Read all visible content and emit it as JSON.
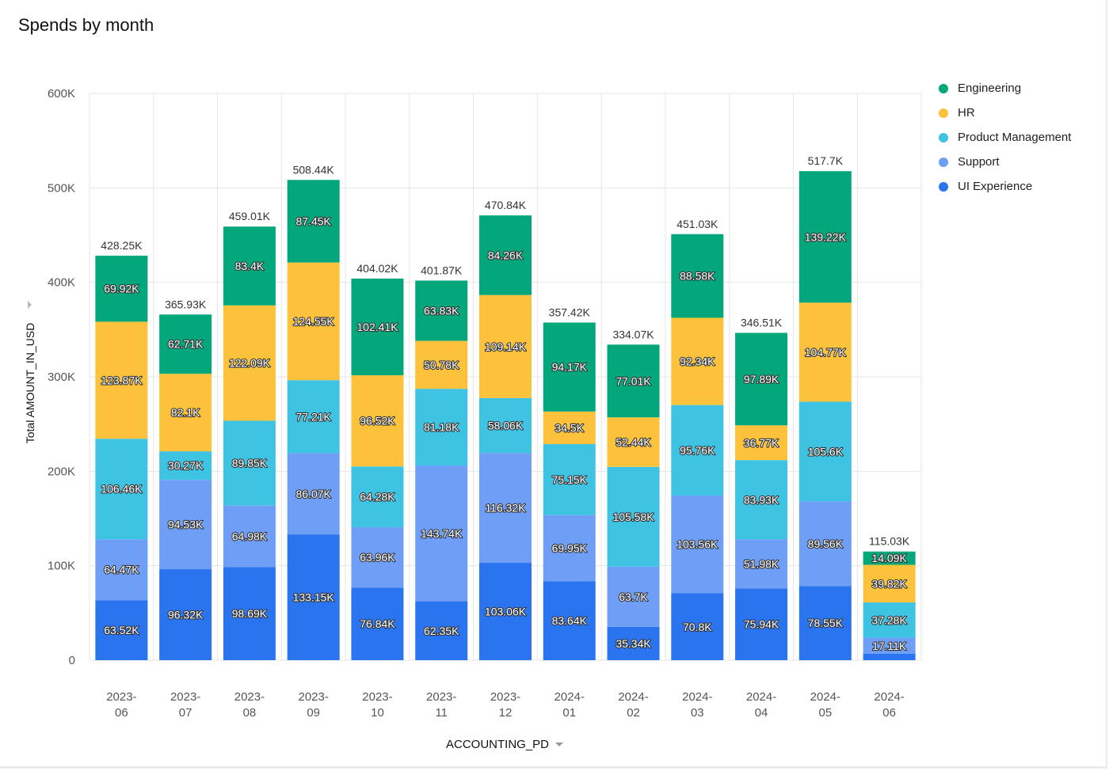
{
  "title": "Spends by month",
  "chart_data": {
    "type": "bar",
    "stacked": true,
    "title": "Spends by month",
    "xlabel": "ACCOUNTING_PD",
    "ylabel": "Total AMOUNT_IN_USD",
    "ylim": [
      0,
      600000
    ],
    "yticks": [
      {
        "value": 0,
        "label": "0"
      },
      {
        "value": 100000,
        "label": "100K"
      },
      {
        "value": 200000,
        "label": "200K"
      },
      {
        "value": 300000,
        "label": "300K"
      },
      {
        "value": 400000,
        "label": "400K"
      },
      {
        "value": 500000,
        "label": "500K"
      },
      {
        "value": 600000,
        "label": "600K"
      }
    ],
    "categories": [
      [
        "2023-",
        "06"
      ],
      [
        "2023-",
        "07"
      ],
      [
        "2023-",
        "08"
      ],
      [
        "2023-",
        "09"
      ],
      [
        "2023-",
        "10"
      ],
      [
        "2023-",
        "11"
      ],
      [
        "2023-",
        "12"
      ],
      [
        "2024-",
        "01"
      ],
      [
        "2024-",
        "02"
      ],
      [
        "2024-",
        "03"
      ],
      [
        "2024-",
        "04"
      ],
      [
        "2024-",
        "05"
      ],
      [
        "2024-",
        "06"
      ]
    ],
    "totals": [
      "428.25K",
      "365.93K",
      "459.01K",
      "508.44K",
      "404.02K",
      "401.87K",
      "470.84K",
      "357.42K",
      "334.07K",
      "451.03K",
      "346.51K",
      "517.7K",
      "115.03K"
    ],
    "series": [
      {
        "name": "UI Experience",
        "color": "#2a74f0",
        "values": [
          63520,
          96320,
          98690,
          133150,
          76840,
          62350,
          103060,
          83640,
          35340,
          70800,
          75940,
          78550,
          6730
        ],
        "labels": [
          "63.52K",
          "96.32K",
          "98.69K",
          "133.15K",
          "76.84K",
          "62.35K",
          "103.06K",
          "83.64K",
          "35.34K",
          "70.8K",
          "75.94K",
          "78.55K",
          ""
        ]
      },
      {
        "name": "Support",
        "color": "#6e9ef5",
        "values": [
          64470,
          94530,
          64980,
          86070,
          63960,
          143740,
          116320,
          69950,
          63700,
          103560,
          51980,
          89560,
          17110
        ],
        "labels": [
          "64.47K",
          "94.53K",
          "64.98K",
          "86.07K",
          "63.96K",
          "143.74K",
          "116.32K",
          "69.95K",
          "63.7K",
          "103.56K",
          "51.98K",
          "89.56K",
          "17.11K"
        ]
      },
      {
        "name": "Product Management",
        "color": "#3ec3e3",
        "values": [
          106460,
          30270,
          89850,
          77210,
          64280,
          81180,
          58060,
          75150,
          105580,
          95760,
          83930,
          105600,
          37280
        ],
        "labels": [
          "106.46K",
          "30.27K",
          "89.85K",
          "77.21K",
          "64.28K",
          "81.18K",
          "58.06K",
          "75.15K",
          "105.58K",
          "95.76K",
          "83.93K",
          "105.6K",
          "37.28K"
        ]
      },
      {
        "name": "HR",
        "color": "#fcc23b",
        "values": [
          123870,
          82100,
          122090,
          124550,
          96520,
          50780,
          109140,
          34500,
          52440,
          92340,
          36770,
          104770,
          39820
        ],
        "labels": [
          "123.87K",
          "82.1K",
          "122.09K",
          "124.55K",
          "96.52K",
          "50.78K",
          "109.14K",
          "34.5K",
          "52.44K",
          "92.34K",
          "36.77K",
          "104.77K",
          "39.82K"
        ]
      },
      {
        "name": "Engineering",
        "color": "#04a77c",
        "values": [
          69920,
          62710,
          83400,
          87450,
          102410,
          63830,
          84260,
          94170,
          77010,
          88580,
          97890,
          139220,
          14090
        ],
        "labels": [
          "69.92K",
          "62.71K",
          "83.4K",
          "87.45K",
          "102.41K",
          "63.83K",
          "84.26K",
          "94.17K",
          "77.01K",
          "88.58K",
          "97.89K",
          "139.22K",
          "14.09K"
        ]
      }
    ],
    "legend": [
      {
        "name": "Engineering",
        "color": "#04a77c"
      },
      {
        "name": "HR",
        "color": "#fcc23b"
      },
      {
        "name": "Product Management",
        "color": "#3ec3e3"
      },
      {
        "name": "Support",
        "color": "#6e9ef5"
      },
      {
        "name": "UI Experience",
        "color": "#2a74f0"
      }
    ],
    "legend_position": "top-right",
    "grid": true
  }
}
